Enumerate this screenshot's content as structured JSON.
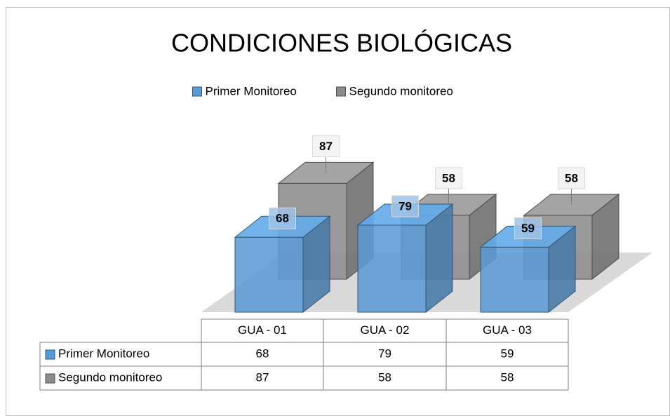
{
  "chart_data": {
    "type": "bar3d",
    "title": "CONDICIONES BIOLÓGICAS",
    "categories": [
      "GUA - 01",
      "GUA - 02",
      "GUA - 03"
    ],
    "series": [
      {
        "name": "Primer Monitoreo",
        "color": "#5b9bd5",
        "values": [
          68,
          79,
          59
        ]
      },
      {
        "name": "Segundo monitoreo",
        "color": "#8c8c8c",
        "values": [
          87,
          58,
          58
        ]
      }
    ],
    "legend": "top"
  }
}
